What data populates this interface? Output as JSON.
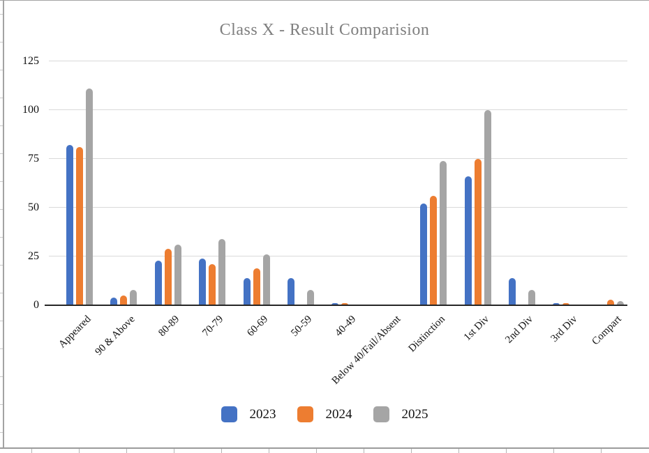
{
  "chart_data": {
    "type": "bar",
    "title": "Class X - Result Comparision",
    "categories": [
      "Appeared",
      "90 & Above",
      "80-89",
      "70-79",
      "60-69",
      "50-59",
      "40-49",
      "Below 40/Fail/Absent",
      "Distinction",
      "1st Div",
      "2nd Div",
      "3rd Div",
      "Compart"
    ],
    "series": [
      {
        "name": "2023",
        "color": "#4472C4",
        "values": [
          82,
          4,
          23,
          24,
          14,
          14,
          1,
          0,
          52,
          66,
          14,
          1,
          0
        ]
      },
      {
        "name": "2024",
        "color": "#ED7D31",
        "values": [
          81,
          5,
          29,
          21,
          19,
          0,
          1,
          0,
          56,
          75,
          0,
          1,
          3
        ]
      },
      {
        "name": "2025",
        "color": "#A5A5A5",
        "values": [
          111,
          8,
          31,
          34,
          26,
          8,
          0,
          0,
          74,
          100,
          8,
          0,
          2
        ]
      }
    ],
    "xlabel": "",
    "ylabel": "",
    "ylim": [
      0,
      125
    ],
    "yticks": [
      0,
      25,
      50,
      75,
      100,
      125
    ],
    "grid": true,
    "legend_position": "bottom"
  },
  "colors": {
    "gridline": "#d9d9d9",
    "axis_line": "#262626",
    "title_text": "#7f7f7f",
    "frame_border": "#a3a3a3"
  }
}
